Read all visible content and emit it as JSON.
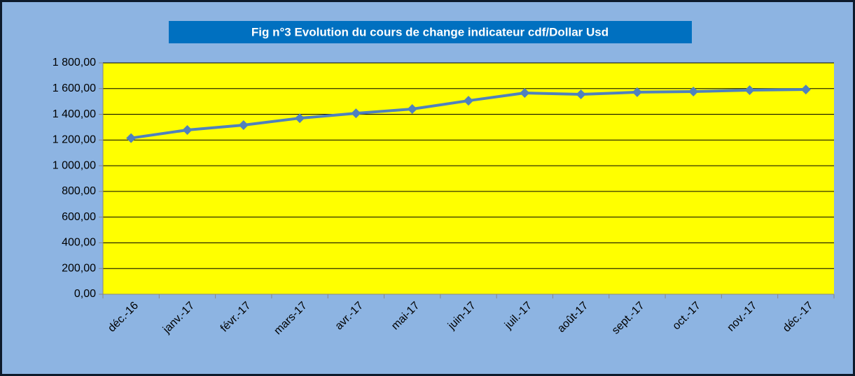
{
  "chart_data": {
    "type": "line",
    "title": "Fig n°3 Evolution du cours de change indicateur cdf/Dollar  Usd",
    "categories": [
      "déc.-16",
      "janv.-17",
      "févr.-17",
      "mars-17",
      "avr.-17",
      "mai-17",
      "juin-17",
      "juil.-17",
      "août-17",
      "sept.-17",
      "oct.-17",
      "nov.-17",
      "déc.-17"
    ],
    "series": [
      {
        "name": "cdf/Dollar Usd",
        "color": "#4f81bd",
        "values": [
          1215,
          1278,
          1316,
          1370,
          1408,
          1441,
          1506,
          1566,
          1555,
          1572,
          1577,
          1588,
          1593
        ]
      }
    ],
    "ylim": [
      0,
      1800
    ],
    "yticks": [
      {
        "value": 0,
        "label": "0,00"
      },
      {
        "value": 200,
        "label": "200,00"
      },
      {
        "value": 400,
        "label": "400,00"
      },
      {
        "value": 600,
        "label": "600,00"
      },
      {
        "value": 800,
        "label": "800,00"
      },
      {
        "value": 1000,
        "label": "1 000,00"
      },
      {
        "value": 1200,
        "label": "1 200,00"
      },
      {
        "value": 1400,
        "label": "1 400,00"
      },
      {
        "value": 1600,
        "label": "1 600,00"
      },
      {
        "value": 1800,
        "label": "1 800,00"
      }
    ],
    "grid": true,
    "plot_background": "#ffff00"
  }
}
